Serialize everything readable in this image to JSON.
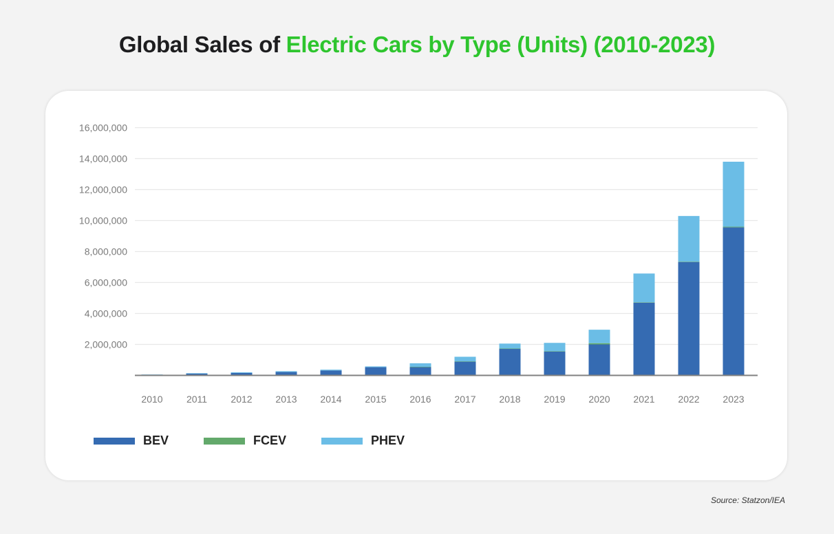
{
  "header": {
    "title_prefix": "Global Sales of ",
    "title_accent": "Electric Cars by Type (Units) (2010-2023)"
  },
  "source": "Source: Statzon/IEA",
  "colors": {
    "title_accent": "#2ec52e",
    "BEV": "#356bb2",
    "FCEV": "#63a96b",
    "PHEV": "#6bbde6",
    "gridline": "#e8e8e8",
    "axis": "#808080"
  },
  "chart_data": {
    "type": "bar",
    "stacked": true,
    "title": "Global Sales of Electric Cars by Type (Units) (2010-2023)",
    "xlabel": "",
    "ylabel": "",
    "categories": [
      "2010",
      "2011",
      "2012",
      "2013",
      "2014",
      "2015",
      "2016",
      "2017",
      "2018",
      "2019",
      "2020",
      "2021",
      "2022",
      "2023"
    ],
    "series": [
      {
        "name": "BEV",
        "values": [
          50000,
          130000,
          160000,
          220000,
          320000,
          530000,
          550000,
          900000,
          1730000,
          1550000,
          2000000,
          4700000,
          7330000,
          9560000
        ]
      },
      {
        "name": "FCEV",
        "values": [
          0,
          0,
          0,
          0,
          0,
          0,
          2000,
          3000,
          4000,
          10000,
          80000,
          20000,
          15000,
          40000
        ]
      },
      {
        "name": "PHEV",
        "values": [
          5000,
          10000,
          40000,
          50000,
          50000,
          50000,
          230000,
          300000,
          320000,
          540000,
          870000,
          1860000,
          2950000,
          4200000
        ]
      }
    ],
    "ylim": [
      0,
      16000000
    ],
    "yticks": [
      2000000,
      4000000,
      6000000,
      8000000,
      10000000,
      12000000,
      14000000,
      16000000
    ],
    "ytick_labels": [
      "2,000,000",
      "4,000,000",
      "6,000,000",
      "8,000,000",
      "10,000,000",
      "12,000,000",
      "14,000,000",
      "16,000,000"
    ],
    "grid": true,
    "legend": {
      "position": "bottom-left",
      "entries": [
        "BEV",
        "FCEV",
        "PHEV"
      ]
    }
  }
}
